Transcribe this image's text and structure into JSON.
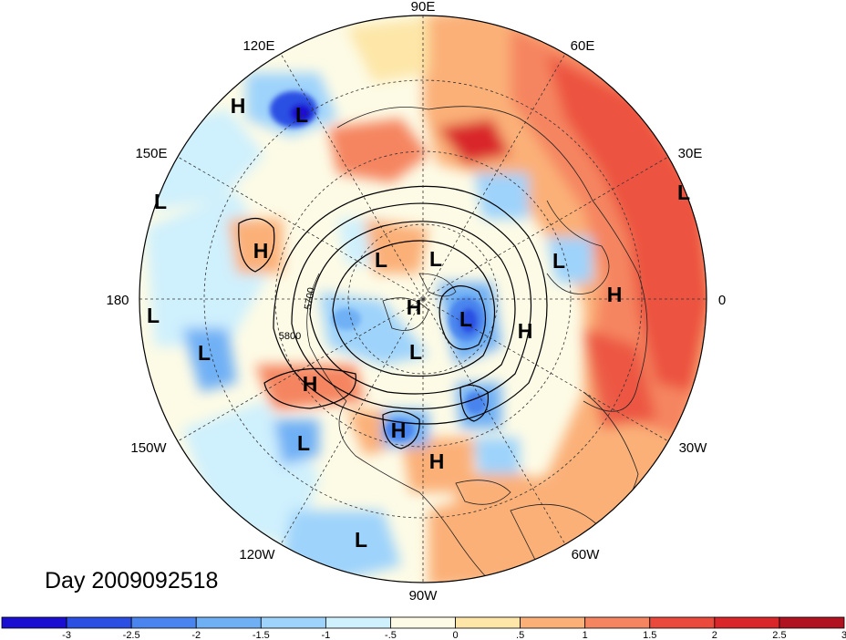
{
  "title": "Day 2009092518",
  "longitude_labels": [
    {
      "name": "lon-90e",
      "text": "90E"
    },
    {
      "name": "lon-60e",
      "text": "60E"
    },
    {
      "name": "lon-120e",
      "text": "120E"
    },
    {
      "name": "lon-30e",
      "text": "30E"
    },
    {
      "name": "lon-150e",
      "text": "150E"
    },
    {
      "name": "lon-180",
      "text": "180"
    },
    {
      "name": "lon-0",
      "text": "0"
    },
    {
      "name": "lon-150w",
      "text": "150W"
    },
    {
      "name": "lon-30w",
      "text": "30W"
    },
    {
      "name": "lon-120w",
      "text": "120W"
    },
    {
      "name": "lon-60w",
      "text": "60W"
    },
    {
      "name": "lon-90w",
      "text": "90W"
    }
  ],
  "pressure_centers": [
    {
      "type": "H",
      "label": "H"
    },
    {
      "type": "L",
      "label": "L"
    },
    {
      "type": "L",
      "label": "L"
    },
    {
      "type": "L",
      "label": "L"
    },
    {
      "type": "H",
      "label": "H"
    },
    {
      "type": "L",
      "label": "L"
    },
    {
      "type": "L",
      "label": "L"
    },
    {
      "type": "L",
      "label": "L"
    },
    {
      "type": "L",
      "label": "L"
    },
    {
      "type": "H",
      "label": "H"
    },
    {
      "type": "H",
      "label": "H"
    },
    {
      "type": "L",
      "label": "L"
    },
    {
      "type": "L",
      "label": "L"
    },
    {
      "type": "H",
      "label": "H"
    },
    {
      "type": "L",
      "label": "L"
    },
    {
      "type": "H",
      "label": "H"
    },
    {
      "type": "L",
      "label": "L"
    },
    {
      "type": "H",
      "label": "H"
    },
    {
      "type": "L",
      "label": "L"
    },
    {
      "type": "H",
      "label": "H"
    }
  ],
  "contour_labels": [
    "5700",
    "5800"
  ],
  "colorbar": {
    "colors": [
      "#1a0fd1",
      "#2b4fe3",
      "#4a84ee",
      "#6fb0f5",
      "#9ed3fb",
      "#cff0fd",
      "#fdfbe6",
      "#fde6a7",
      "#fbb078",
      "#f58560",
      "#ea4a3c",
      "#d9262a",
      "#b11220"
    ],
    "ticks": [
      "-3",
      "-2.5",
      "-2",
      "-1.5",
      "-1",
      "-.5",
      "0",
      ".5",
      "1",
      "1.5",
      "2",
      "2.5",
      "3"
    ]
  }
}
